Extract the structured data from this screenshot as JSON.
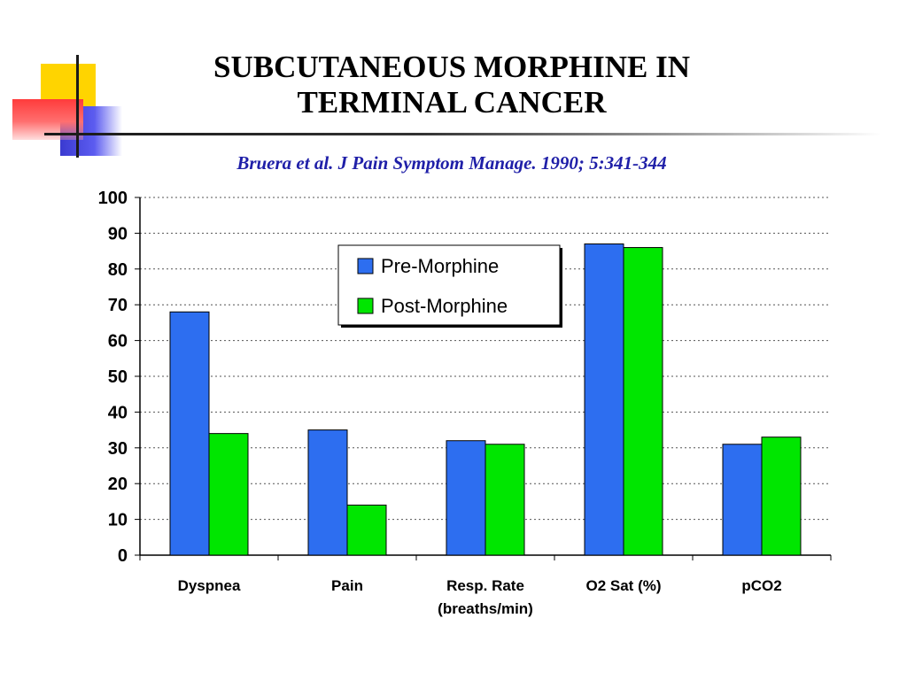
{
  "slide": {
    "title": "SUBCUTANEOUS MORPHINE  IN\nTERMINAL  CANCER",
    "subtitle": "Bruera et al. J Pain Symptom Manage.  1990; 5:341-344"
  },
  "colors": {
    "pre": "#2d6ef0",
    "post": "#00e600",
    "grid": "#555555",
    "axis": "#000000"
  },
  "chart_data": {
    "type": "bar",
    "categories": [
      "Dyspnea",
      "Pain",
      "Resp. Rate\n(breaths/min)",
      "O2 Sat (%)",
      "pCO2"
    ],
    "series": [
      {
        "name": "Pre-Morphine",
        "values": [
          68,
          35,
          32,
          87,
          31
        ]
      },
      {
        "name": "Post-Morphine",
        "values": [
          34,
          14,
          31,
          86,
          33
        ]
      }
    ],
    "ylim": [
      0,
      100
    ],
    "yticks": [
      0,
      10,
      20,
      30,
      40,
      50,
      60,
      70,
      80,
      90,
      100
    ],
    "grid": true,
    "legend": "top-center",
    "xlabel": "",
    "ylabel": ""
  }
}
